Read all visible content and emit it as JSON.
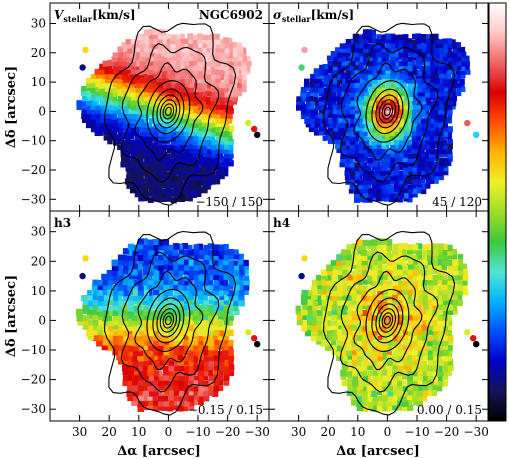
{
  "chart_data": {
    "type": "heatmap",
    "galaxy": "NGC6902",
    "x_tick_labels": [
      "30",
      "20",
      "10",
      "0",
      "−10",
      "−20",
      "−30"
    ],
    "y_tick_labels": [
      "30",
      "20",
      "10",
      "0",
      "−10",
      "−20",
      "−30"
    ],
    "x_ticks": [
      30,
      20,
      10,
      0,
      -10,
      -20,
      -30
    ],
    "y_ticks": [
      30,
      20,
      10,
      0,
      -10,
      -20,
      -30
    ],
    "xlim": [
      40,
      -34
    ],
    "ylim": [
      -34,
      37
    ],
    "xlabel": "Δα [arcsec]",
    "ylabel": "Δδ [arcsec]",
    "panels": [
      {
        "label": "V",
        "label_sub": "stellar",
        "label_unit": "[km/s]",
        "name": "NGC6902",
        "range": "−150 / 150",
        "quantity": "velocity",
        "vmin": -150,
        "vmax": 150
      },
      {
        "label": "σ",
        "label_sub": "stellar",
        "label_unit": "[km/s]",
        "name": "",
        "range": "45 / 120",
        "quantity": "dispersion",
        "vmin": 45,
        "vmax": 120
      },
      {
        "label": "h3",
        "label_sub": "",
        "label_unit": "",
        "name": "",
        "range": "−0.15 / 0.15",
        "quantity": "h3",
        "vmin": -0.15,
        "vmax": 0.15
      },
      {
        "label": "h4",
        "label_sub": "",
        "label_unit": "",
        "name": "",
        "range": "0.00 / 0.15",
        "quantity": "h4",
        "vmin": 0.0,
        "vmax": 0.15
      }
    ],
    "colormap": [
      "#000000",
      "#14145a",
      "#0000c8",
      "#0050ff",
      "#00b4ff",
      "#50e6d2",
      "#3cc83c",
      "#a0dc28",
      "#f0f028",
      "#ffb400",
      "#ff5000",
      "#dc0000",
      "#f06464",
      "#ffc8c8",
      "#ffffff"
    ],
    "colorbar": "right, vertical, no tick labels"
  }
}
